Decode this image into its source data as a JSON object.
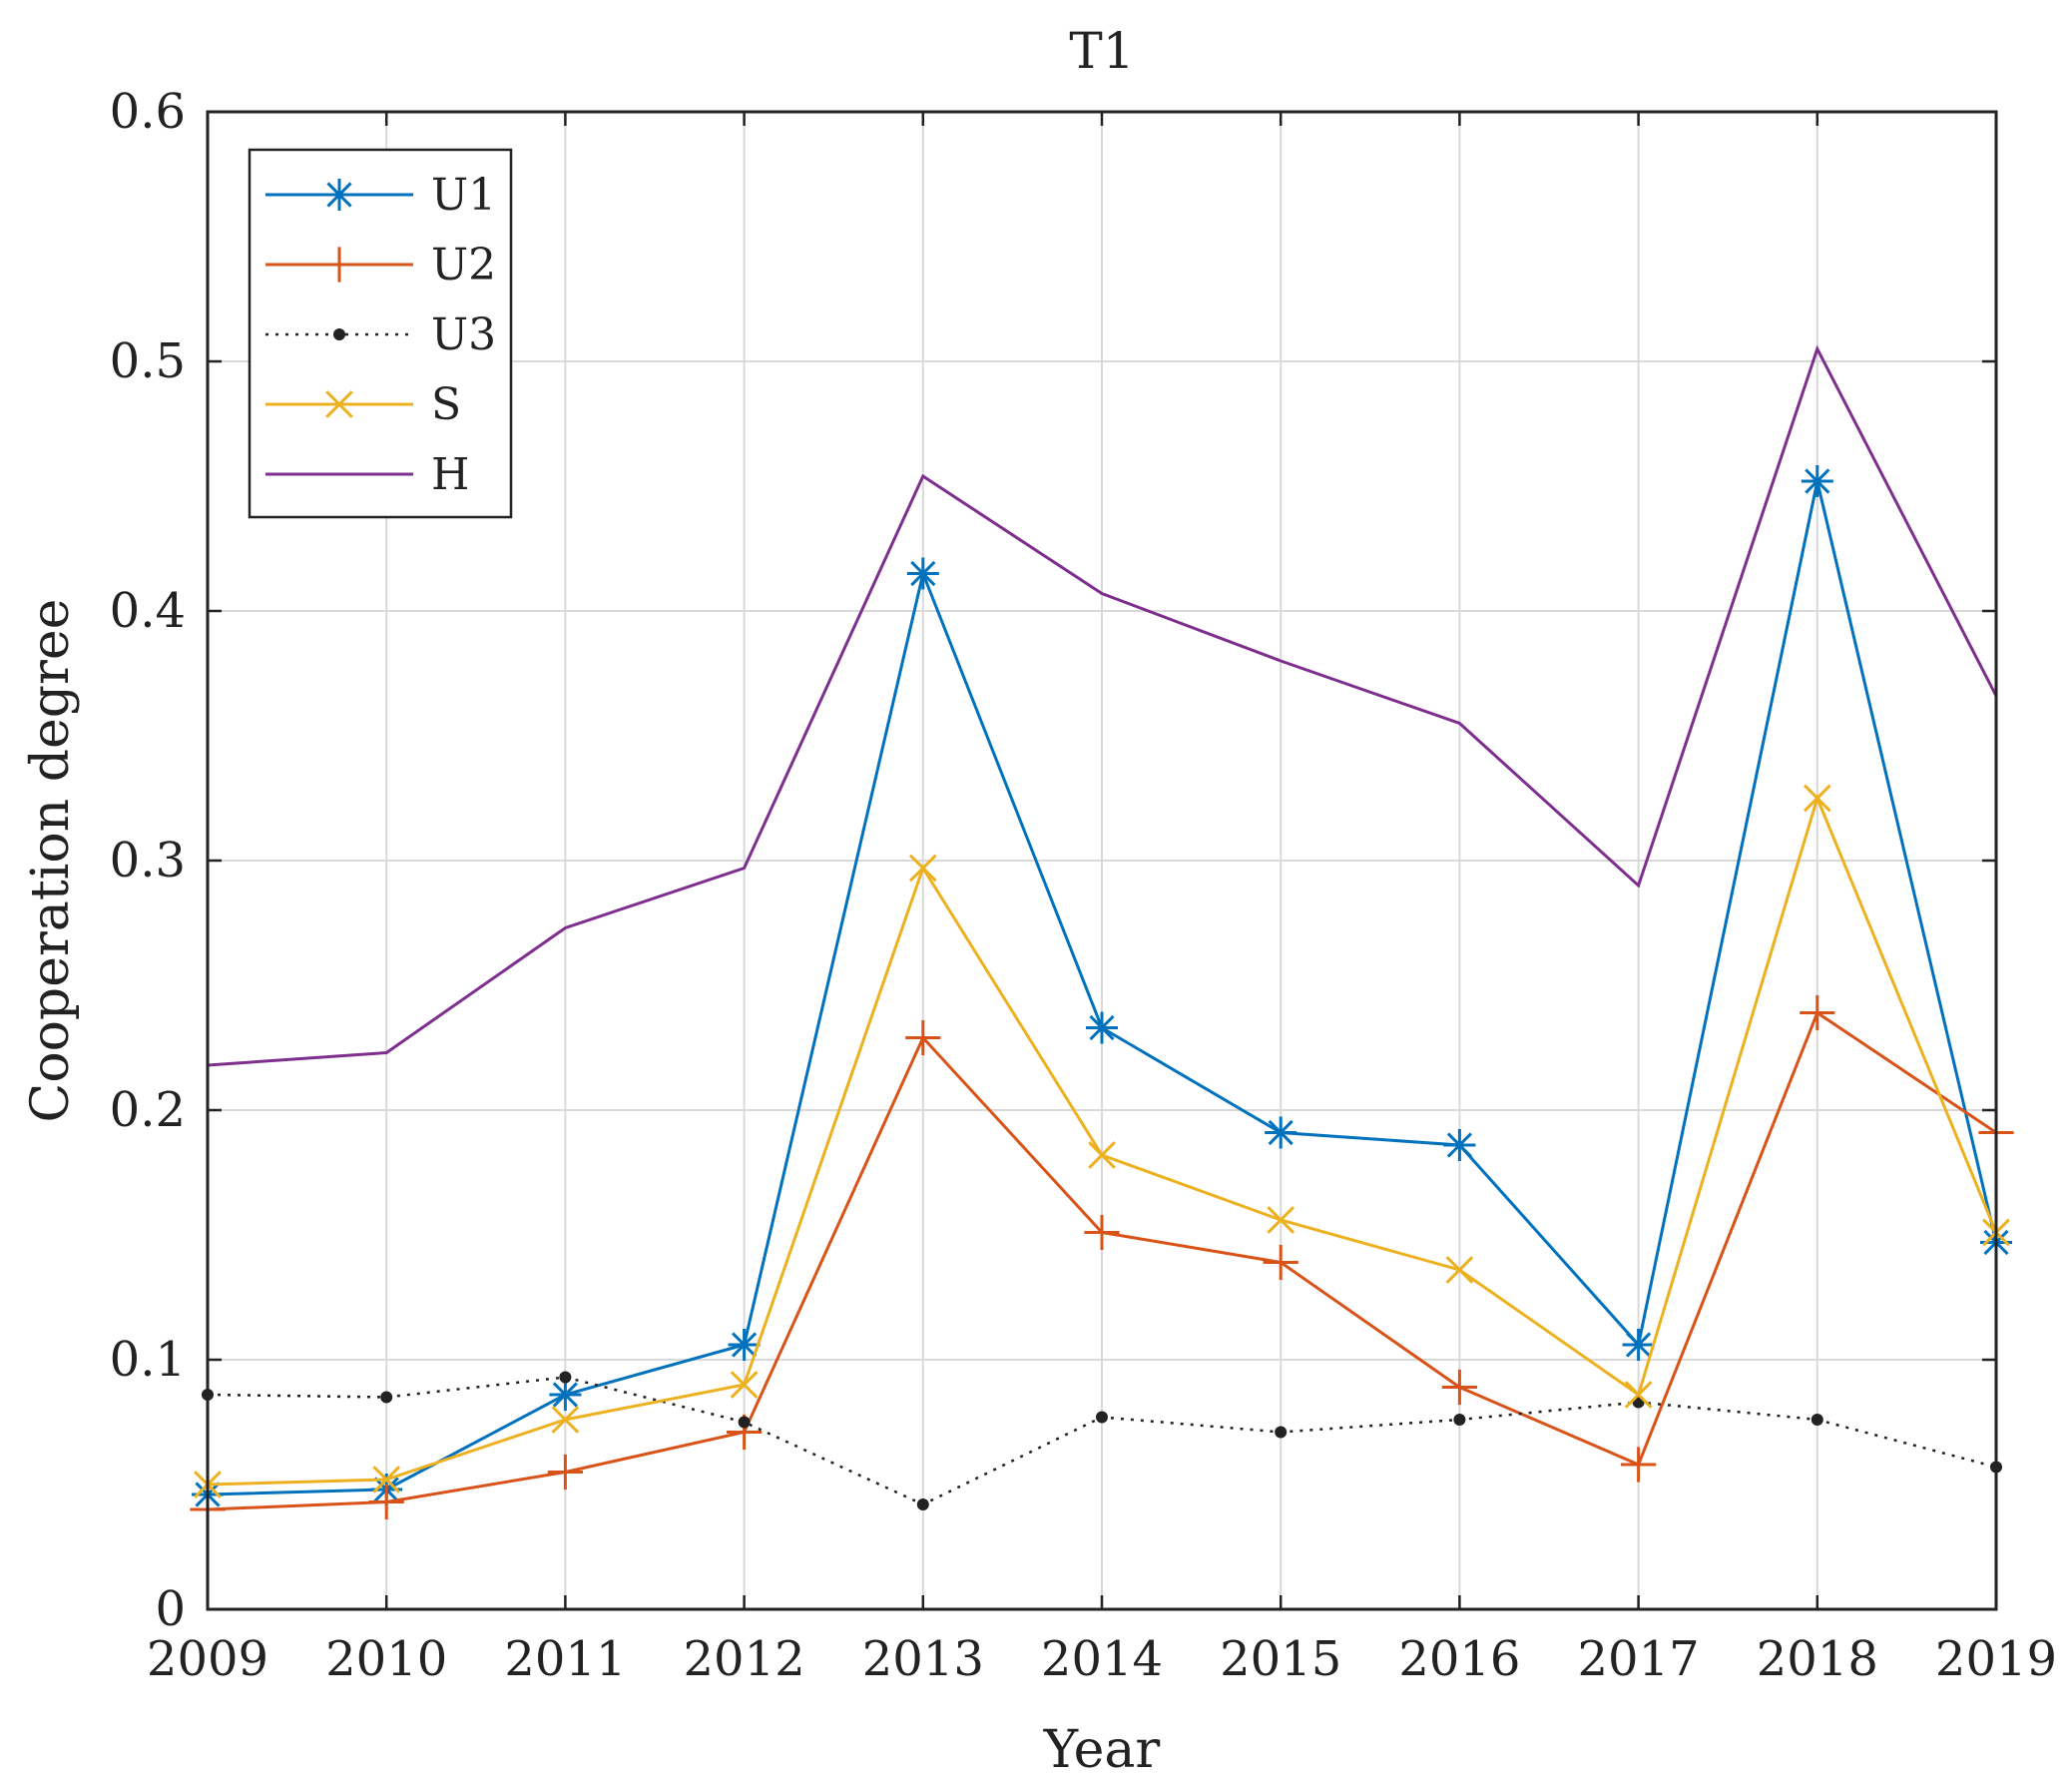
{
  "chart_data": {
    "type": "line",
    "title": "T1",
    "xlabel": "Year",
    "ylabel": "Cooperation degree",
    "x": [
      2009,
      2010,
      2011,
      2012,
      2013,
      2014,
      2015,
      2016,
      2017,
      2018,
      2019
    ],
    "xticks": [
      "2009",
      "2010",
      "2011",
      "2012",
      "2013",
      "2014",
      "2015",
      "2016",
      "2017",
      "2018",
      "2019"
    ],
    "yticks": [
      "0",
      "0.1",
      "0.2",
      "0.3",
      "0.4",
      "0.5",
      "0.6"
    ],
    "ylim": [
      0,
      0.6
    ],
    "xlim": [
      2009,
      2019
    ],
    "grid": true,
    "legend_position": "top-left",
    "series": [
      {
        "name": "U1",
        "color": "#0072BD",
        "marker": "asterisk",
        "style": "solid",
        "values": [
          0.046,
          0.048,
          0.086,
          0.106,
          0.415,
          0.233,
          0.191,
          0.186,
          0.106,
          0.452,
          0.147
        ]
      },
      {
        "name": "U2",
        "color": "#D95319",
        "marker": "plus",
        "style": "solid",
        "values": [
          0.04,
          0.043,
          0.055,
          0.071,
          0.229,
          0.151,
          0.139,
          0.089,
          0.058,
          0.239,
          0.191
        ]
      },
      {
        "name": "U3",
        "color": "#222222",
        "marker": "dot",
        "style": "dotted",
        "values": [
          0.086,
          0.085,
          0.093,
          0.075,
          0.042,
          0.077,
          0.071,
          0.076,
          0.083,
          0.076,
          0.057
        ]
      },
      {
        "name": "S",
        "color": "#EDB120",
        "marker": "x",
        "style": "solid",
        "values": [
          0.05,
          0.052,
          0.076,
          0.09,
          0.297,
          0.182,
          0.156,
          0.136,
          0.086,
          0.325,
          0.151
        ]
      },
      {
        "name": "H",
        "color": "#7E2F8E",
        "marker": "none",
        "style": "solid",
        "values": [
          0.218,
          0.223,
          0.273,
          0.297,
          0.454,
          0.407,
          0.38,
          0.355,
          0.29,
          0.505,
          0.366
        ]
      }
    ]
  }
}
